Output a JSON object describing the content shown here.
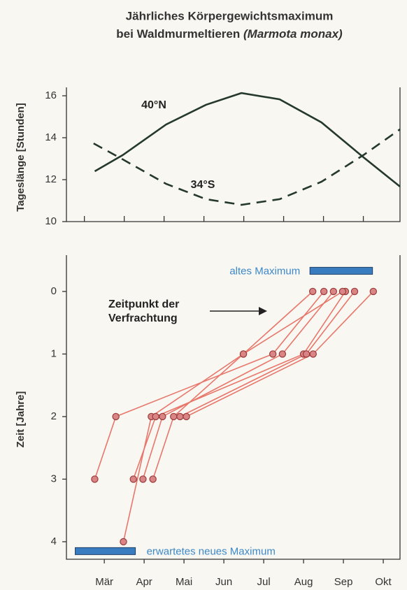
{
  "title": [
    "Jährliches Körpergewichtsmaximum",
    "bei Waldmurmeltieren"
  ],
  "title_species": "(Marmota monax)",
  "chart_data": [
    {
      "type": "line",
      "ylabel": "Tageslänge [Stunden]",
      "xlim": [
        2.55,
        10.92
      ],
      "ylim": [
        10,
        16.4
      ],
      "xticks": [
        3,
        4,
        5,
        6,
        7,
        8,
        9,
        10
      ],
      "yticks": [
        10,
        12,
        14,
        16
      ],
      "series": [
        {
          "name": "40°N",
          "color": "#24382c",
          "dash": false,
          "x": [
            3.26,
            3.96,
            5.05,
            6.05,
            6.94,
            7.9,
            8.95,
            10.0,
            10.92
          ],
          "values": [
            12.4,
            13.17,
            14.63,
            15.57,
            16.13,
            15.83,
            14.73,
            13.07,
            11.67
          ]
        },
        {
          "name": "34°S",
          "color": "#24382c",
          "dash": true,
          "x": [
            3.23,
            3.96,
            5.05,
            6.05,
            6.94,
            7.9,
            8.95,
            10.0,
            10.92
          ],
          "values": [
            13.73,
            12.97,
            11.8,
            11.07,
            10.8,
            11.07,
            11.9,
            13.17,
            14.4
          ]
        }
      ]
    },
    {
      "type": "scatter",
      "ylabel": "Zeit [Jahre]",
      "xlim": [
        2.55,
        10.92
      ],
      "ylim": [
        4.28,
        -0.58
      ],
      "xticks": [
        {
          "value": 3.5,
          "label": "Mär"
        },
        {
          "value": 4.5,
          "label": "Apr"
        },
        {
          "value": 5.5,
          "label": "Mai"
        },
        {
          "value": 6.5,
          "label": "Jun"
        },
        {
          "value": 7.5,
          "label": "Jul"
        },
        {
          "value": 8.5,
          "label": "Aug"
        },
        {
          "value": 9.5,
          "label": "Sep"
        },
        {
          "value": 10.5,
          "label": "Okt"
        }
      ],
      "yticks": [
        0,
        1,
        2,
        3,
        4
      ],
      "annotation": [
        "Zeitpunkt der",
        "Verfrachtung"
      ],
      "ranges": [
        {
          "label": "altes Maximum",
          "x": [
            8.66,
            10.23
          ],
          "y": -0.33,
          "color": "#3a7cc0"
        },
        {
          "label": "erwartetes neues Maximum",
          "x": [
            2.77,
            4.28
          ],
          "y": 4.15,
          "color": "#3a7cc0"
        }
      ],
      "color": "#e8776b",
      "series": [
        {
          "x": [
            3.26,
            3.79,
            7.73,
            9.01
          ],
          "values": [
            3,
            2,
            1,
            0
          ]
        },
        {
          "x": [
            3.98,
            4.68,
            6.99,
            8.73
          ],
          "values": [
            4,
            2,
            1,
            0
          ]
        },
        {
          "x": [
            4.23,
            4.79,
            8.5,
            9.55
          ],
          "values": [
            3,
            2,
            1,
            0
          ]
        },
        {
          "x": [
            4.47,
            4.96,
            7.97,
            9.25
          ],
          "values": [
            3,
            2,
            1,
            0
          ]
        },
        {
          "x": [
            4.72,
            5.24,
            6.99,
            9.48
          ],
          "values": [
            3,
            2,
            1,
            0
          ]
        },
        {
          "x": [
            5.4,
            8.57,
            9.78
          ],
          "values": [
            2,
            1,
            0
          ]
        },
        {
          "x": [
            5.56,
            8.74,
            10.25
          ],
          "values": [
            2,
            1,
            0
          ]
        }
      ]
    }
  ]
}
